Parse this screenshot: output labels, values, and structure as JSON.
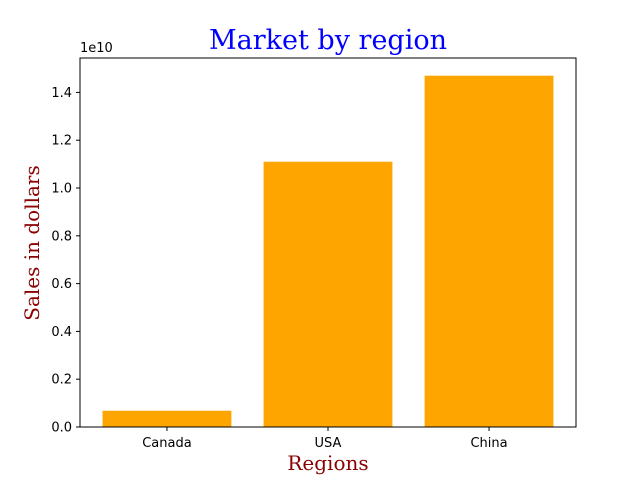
{
  "chart_data": {
    "type": "bar",
    "title": "Market by region",
    "xlabel": "Regions",
    "ylabel": "Sales in dollars",
    "categories": [
      "Canada",
      "USA",
      "China"
    ],
    "values": [
      680000000,
      11100000000,
      14700000000
    ],
    "ylim": [
      0,
      15440000000
    ],
    "y_ticks": [
      0,
      2000000000,
      4000000000,
      6000000000,
      8000000000,
      10000000000,
      12000000000,
      14000000000
    ],
    "y_tick_labels": [
      "0.0",
      "0.2",
      "0.4",
      "0.6",
      "0.8",
      "1.0",
      "1.2",
      "1.4"
    ],
    "y_offset_label": "1e10",
    "grid": false,
    "legend": "none",
    "colors": {
      "bar": "#ffa500",
      "title": "#0000ff",
      "axis_label": "#8b0000",
      "axis": "#000000"
    }
  }
}
